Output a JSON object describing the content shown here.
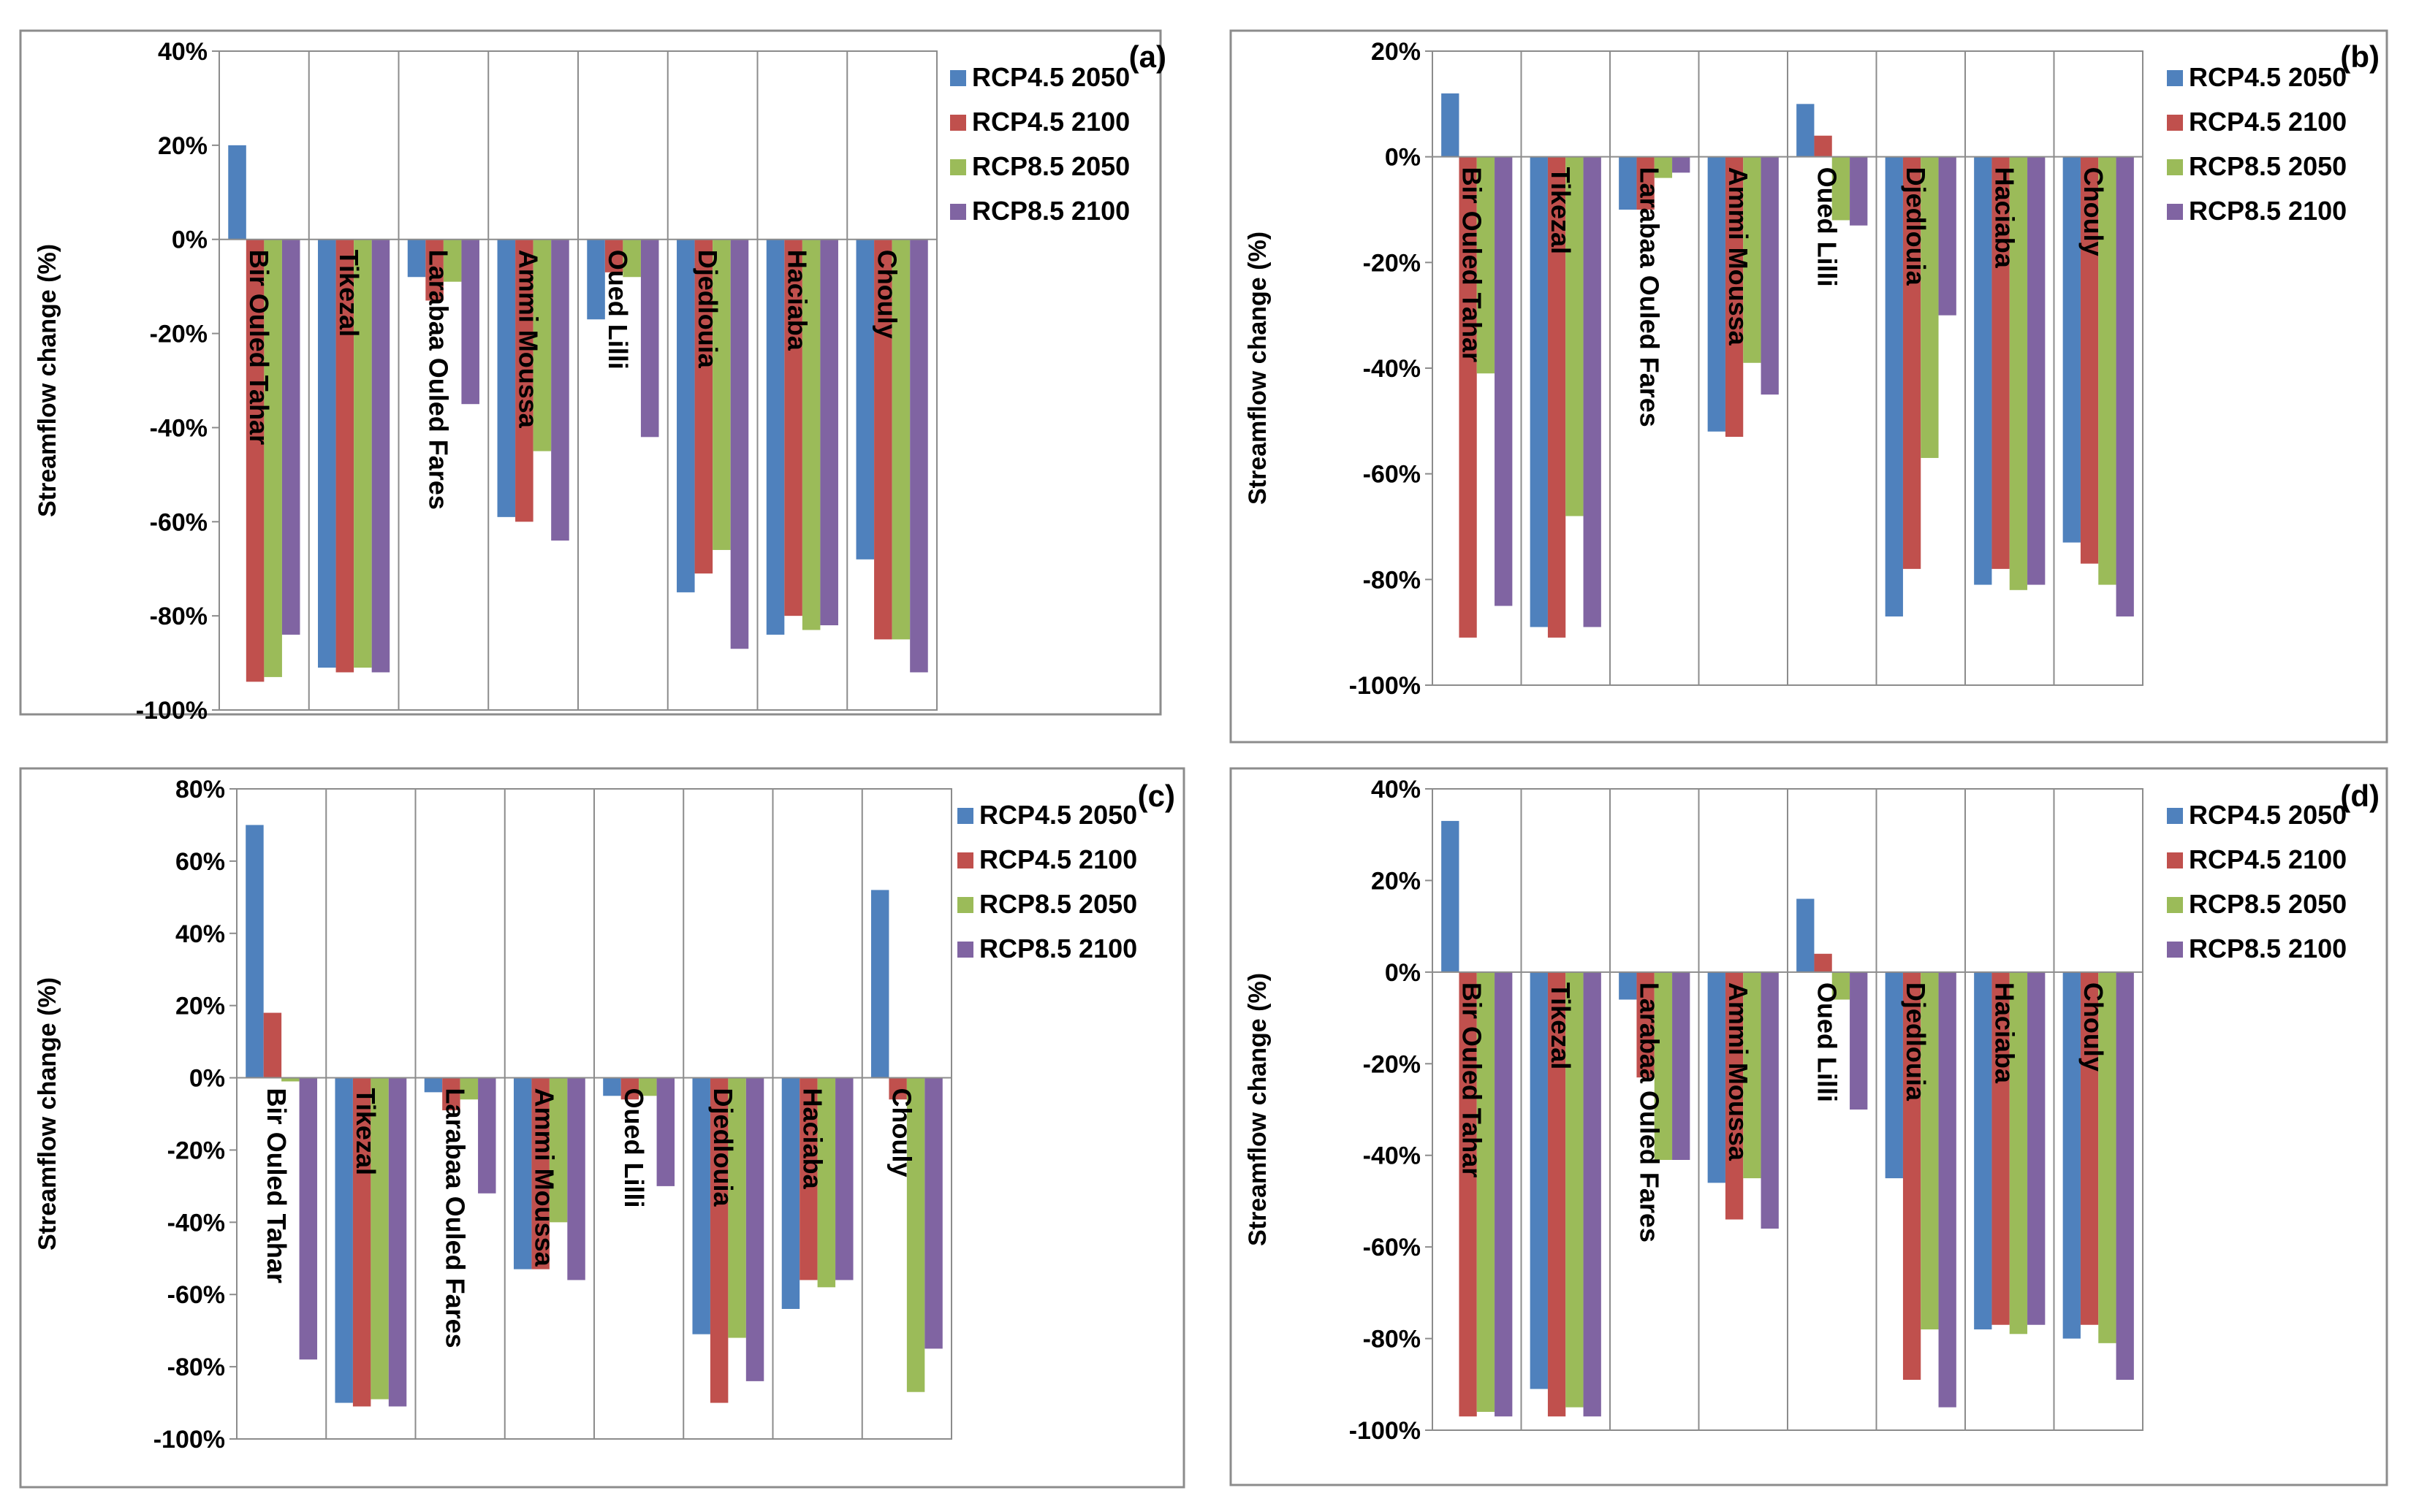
{
  "chart_data": [
    {
      "type": "bar",
      "panel": "(a)",
      "ylabel": "Streamflow change (%)",
      "ylim": [
        -100,
        40
      ],
      "yticks": [
        40,
        20,
        0,
        -20,
        -40,
        -60,
        -80,
        -100
      ],
      "tick_labels": [
        "40%",
        "20%",
        "0%",
        "-20%",
        "-40%",
        "-60%",
        "-80%",
        "-100%"
      ],
      "grid": "vertical category dividers",
      "legend": "right",
      "categories": [
        "Bir Ouled Tahar",
        "Tikezal",
        "Larabaa Ouled Fares",
        "Ammi Moussa",
        "Oued Lilli",
        "Djedlouia",
        "Haciaba",
        "Chouly"
      ],
      "series": [
        {
          "name": "RCP4.5 2050",
          "color": "#4f81bd",
          "values": [
            20,
            -91,
            -8,
            -59,
            -17,
            -75,
            -84,
            -68
          ]
        },
        {
          "name": "RCP4.5 2100",
          "color": "#c0504d",
          "values": [
            -94,
            -92,
            -13,
            -60,
            -7,
            -71,
            -80,
            -85
          ]
        },
        {
          "name": "RCP8.5 2050",
          "color": "#9bbb59",
          "values": [
            -93,
            -91,
            -9,
            -45,
            -8,
            -66,
            -83,
            -85
          ]
        },
        {
          "name": "RCP8.5 2100",
          "color": "#8064a2",
          "values": [
            -84,
            -92,
            -35,
            -64,
            -42,
            -87,
            -82,
            -92
          ]
        }
      ]
    },
    {
      "type": "bar",
      "panel": "(b)",
      "ylabel": "Streamflow change (%)",
      "ylim": [
        -100,
        20
      ],
      "yticks": [
        20,
        0,
        -20,
        -40,
        -60,
        -80,
        -100
      ],
      "tick_labels": [
        "20%",
        "0%",
        "-20%",
        "-40%",
        "-60%",
        "-80%",
        "-100%"
      ],
      "grid": "vertical category dividers",
      "legend": "right",
      "categories": [
        "Bir Ouled Tahar",
        "Tikezal",
        "Larabaa Ouled Fares",
        "Ammi Moussa",
        "Oued Lilli",
        "Djedlouia",
        "Haciaba",
        "Chouly"
      ],
      "series": [
        {
          "name": "RCP4.5 2050",
          "color": "#4f81bd",
          "values": [
            12,
            -89,
            -10,
            -52,
            10,
            -87,
            -81,
            -73
          ]
        },
        {
          "name": "RCP4.5 2100",
          "color": "#c0504d",
          "values": [
            -91,
            -91,
            -10,
            -53,
            4,
            -78,
            -78,
            -77
          ]
        },
        {
          "name": "RCP8.5 2050",
          "color": "#9bbb59",
          "values": [
            -41,
            -68,
            -4,
            -39,
            -12,
            -57,
            -82,
            -81
          ]
        },
        {
          "name": "RCP8.5 2100",
          "color": "#8064a2",
          "values": [
            -85,
            -89,
            -3,
            -45,
            -13,
            -30,
            -81,
            -87
          ]
        }
      ]
    },
    {
      "type": "bar",
      "panel": "(c)",
      "ylabel": "Streamflow change (%)",
      "ylim": [
        -100,
        80
      ],
      "yticks": [
        80,
        60,
        40,
        20,
        0,
        -20,
        -40,
        -60,
        -80,
        -100
      ],
      "tick_labels": [
        "80%",
        "60%",
        "40%",
        "20%",
        "0%",
        "-20%",
        "-40%",
        "-60%",
        "-80%",
        "-100%"
      ],
      "grid": "vertical category dividers",
      "legend": "right",
      "categories": [
        "Bir Ouled Tahar",
        "Tikezal",
        "Larabaa Ouled Fares",
        "Ammi Moussa",
        "Oued Lilli",
        "Djedlouia",
        "Haciaba",
        "Chouly"
      ],
      "series": [
        {
          "name": "RCP4.5 2050",
          "color": "#4f81bd",
          "values": [
            70,
            -90,
            -4,
            -53,
            -5,
            -71,
            -64,
            52
          ]
        },
        {
          "name": "RCP4.5 2100",
          "color": "#c0504d",
          "values": [
            18,
            -91,
            -9,
            -53,
            -6,
            -90,
            -56,
            -6
          ]
        },
        {
          "name": "RCP8.5 2050",
          "color": "#9bbb59",
          "values": [
            -1,
            -89,
            -6,
            -40,
            -5,
            -72,
            -58,
            -87
          ]
        },
        {
          "name": "RCP8.5 2100",
          "color": "#8064a2",
          "values": [
            -78,
            -91,
            -32,
            -56,
            -30,
            -84,
            -56,
            -75
          ]
        }
      ]
    },
    {
      "type": "bar",
      "panel": "(d)",
      "ylabel": "Streamflow change (%)",
      "ylim": [
        -100,
        40
      ],
      "yticks": [
        40,
        20,
        0,
        -20,
        -40,
        -60,
        -80,
        -100
      ],
      "tick_labels": [
        "40%",
        "20%",
        "0%",
        "-20%",
        "-40%",
        "-60%",
        "-80%",
        "-100%"
      ],
      "grid": "vertical category dividers",
      "legend": "right",
      "categories": [
        "Bir Ouled Tahar",
        "Tikezal",
        "Larabaa Ouled Fares",
        "Ammi Moussa",
        "Oued Lilli",
        "Djedlouia",
        "Haciaba",
        "Chouly"
      ],
      "series": [
        {
          "name": "RCP4.5 2050",
          "color": "#4f81bd",
          "values": [
            33,
            -91,
            -6,
            -46,
            16,
            -45,
            -78,
            -80
          ]
        },
        {
          "name": "RCP4.5 2100",
          "color": "#c0504d",
          "values": [
            -97,
            -97,
            -23,
            -54,
            4,
            -89,
            -77,
            -77
          ]
        },
        {
          "name": "RCP8.5 2050",
          "color": "#9bbb59",
          "values": [
            -96,
            -95,
            -41,
            -45,
            -6,
            -78,
            -79,
            -81
          ]
        },
        {
          "name": "RCP8.5 2100",
          "color": "#8064a2",
          "values": [
            -97,
            -97,
            -41,
            -56,
            -30,
            -95,
            -77,
            -89
          ]
        }
      ]
    }
  ]
}
